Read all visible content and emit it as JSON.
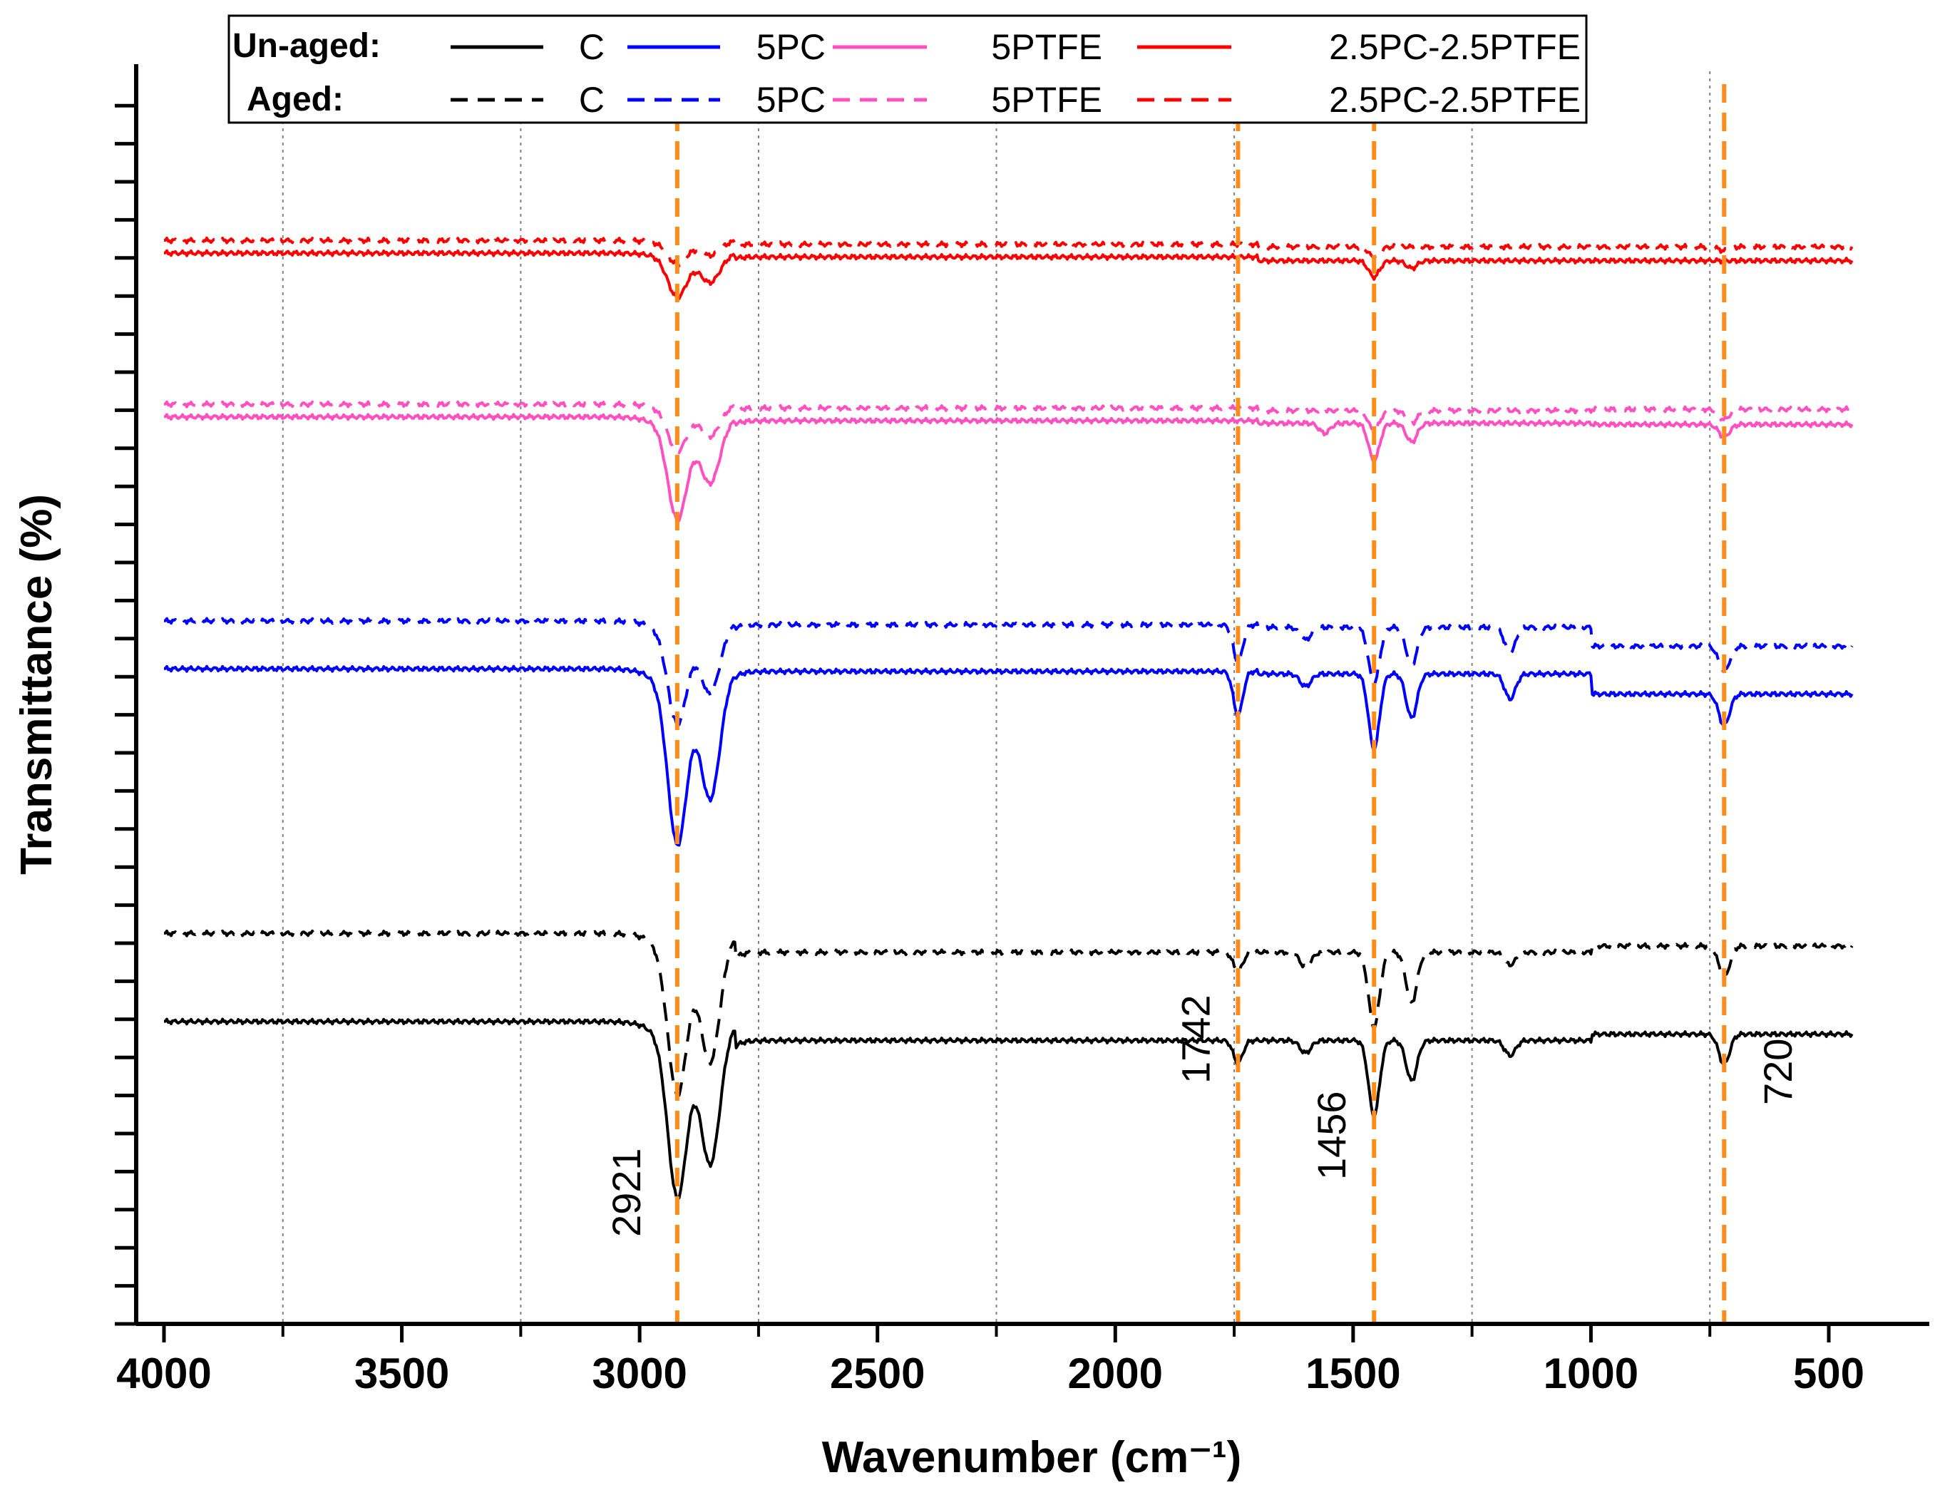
{
  "chart_data": {
    "type": "line",
    "title": "",
    "xlabel": "Wavenumber (cm⁻¹)",
    "ylabel": "Transmittance (%)",
    "xlim": [
      4060,
      300
    ],
    "x_reversed": true,
    "ylim": [
      0,
      100
    ],
    "x_ticks": [
      {
        "value": 4000,
        "label": "4000"
      },
      {
        "value": 3500,
        "label": "3500"
      },
      {
        "value": 3000,
        "label": "3000"
      },
      {
        "value": 2500,
        "label": "2500"
      },
      {
        "value": 2000,
        "label": "2000"
      },
      {
        "value": 1500,
        "label": "1500"
      },
      {
        "value": 1000,
        "label": "1000"
      },
      {
        "value": 500,
        "label": "500"
      }
    ],
    "y_ticks_labeled": false,
    "grid_vertical_dotted": [
      3750,
      3250,
      2750,
      2250,
      1750,
      1250,
      750
    ],
    "legend": {
      "placement": "top-center",
      "group_labels": [
        "Un-aged:",
        "Aged:"
      ],
      "entries": [
        {
          "series": "C",
          "label": "C"
        },
        {
          "series": "5PC",
          "label": "5PC"
        },
        {
          "series": "5PTFE",
          "label": "5PTFE"
        },
        {
          "series": "2.5PC-2.5PTFE",
          "label": "2.5PC-2.5PTFE"
        }
      ]
    },
    "annotations": [
      {
        "label": "2921",
        "x": 2921
      },
      {
        "label": "1742",
        "x": 1742
      },
      {
        "label": "1456",
        "x": 1456
      },
      {
        "label": "720",
        "x": 720
      }
    ],
    "series": [
      {
        "name": "C",
        "condition": "Un-aged",
        "color": "#000000",
        "dash": "solid",
        "baseline": 24.0,
        "offset": [
          0,
          1.5,
          1.5,
          1.0
        ],
        "peaks": [
          [
            2921,
            12
          ],
          [
            2851,
            10
          ],
          [
            1742,
            1.8
          ],
          [
            1600,
            1.0
          ],
          [
            1456,
            6
          ],
          [
            1377,
            3.2
          ],
          [
            1170,
            1.2
          ],
          [
            720,
            2.4
          ]
        ]
      },
      {
        "name": "C",
        "condition": "Aged",
        "color": "#000000",
        "dash": "dashed",
        "baseline": 31.0,
        "offset": [
          0,
          1.5,
          1.5,
          1.0
        ],
        "peaks": [
          [
            2921,
            11
          ],
          [
            2851,
            9
          ],
          [
            1742,
            1.5
          ],
          [
            1600,
            1.2
          ],
          [
            1456,
            6
          ],
          [
            1377,
            4
          ],
          [
            1170,
            1.0
          ],
          [
            720,
            2.5
          ]
        ]
      },
      {
        "name": "5PC",
        "condition": "Un-aged",
        "color": "#0000ff",
        "dash": "solid",
        "baseline": 52.0,
        "offset": [
          0,
          0.2,
          0.4,
          2.0
        ],
        "peaks": [
          [
            2921,
            12
          ],
          [
            2851,
            9
          ],
          [
            1742,
            3.5
          ],
          [
            1600,
            1.0
          ],
          [
            1456,
            6
          ],
          [
            1377,
            3.5
          ],
          [
            1170,
            2.0
          ],
          [
            720,
            2.5
          ]
        ]
      },
      {
        "name": "5PC",
        "condition": "Aged",
        "color": "#0000ff",
        "dash": "dashed",
        "baseline": 55.8,
        "offset": [
          0,
          0.3,
          0.5,
          2.0
        ],
        "peaks": [
          [
            2921,
            7
          ],
          [
            2851,
            5
          ],
          [
            1742,
            3.0
          ],
          [
            1600,
            1.0
          ],
          [
            1456,
            4.5
          ],
          [
            1377,
            3.0
          ],
          [
            1170,
            2.0
          ],
          [
            720,
            2.0
          ]
        ]
      },
      {
        "name": "5PTFE",
        "condition": "Un-aged",
        "color": "#ff4fc0",
        "dash": "solid",
        "baseline": 72.0,
        "offset": [
          0,
          0.3,
          0.5,
          0.6
        ],
        "peaks": [
          [
            2921,
            7
          ],
          [
            2851,
            4.5
          ],
          [
            1456,
            3.0
          ],
          [
            1377,
            1.5
          ],
          [
            1560,
            0.8
          ],
          [
            720,
            1.0
          ]
        ]
      },
      {
        "name": "5PTFE",
        "condition": "Aged",
        "color": "#ff4fc0",
        "dash": "dashed",
        "baseline": 73.0,
        "offset": [
          0,
          0.3,
          0.5,
          0.4
        ],
        "peaks": [
          [
            2921,
            3.2
          ],
          [
            2851,
            2.2
          ],
          [
            1456,
            1.6
          ],
          [
            1377,
            1.0
          ],
          [
            720,
            0.8
          ]
        ]
      },
      {
        "name": "2.5PC-2.5PTFE",
        "condition": "Un-aged",
        "color": "#ff0000",
        "dash": "solid",
        "baseline": 85.0,
        "offset": [
          0,
          0.3,
          0.6,
          0.6
        ],
        "peaks": [
          [
            2921,
            3.0
          ],
          [
            2851,
            2.0
          ],
          [
            1456,
            1.3
          ],
          [
            1377,
            0.6
          ]
        ]
      },
      {
        "name": "2.5PC-2.5PTFE",
        "condition": "Aged",
        "color": "#ff0000",
        "dash": "dashed",
        "baseline": 86.0,
        "offset": [
          0,
          0.3,
          0.5,
          0.5
        ],
        "peaks": [
          [
            2921,
            1.6
          ],
          [
            2851,
            1.0
          ],
          [
            1456,
            0.8
          ],
          [
            720,
            0.3
          ]
        ]
      }
    ]
  },
  "colors": {
    "highlight_line": "#ff8c1a",
    "grid_line": "#808080",
    "axis": "#000000"
  }
}
